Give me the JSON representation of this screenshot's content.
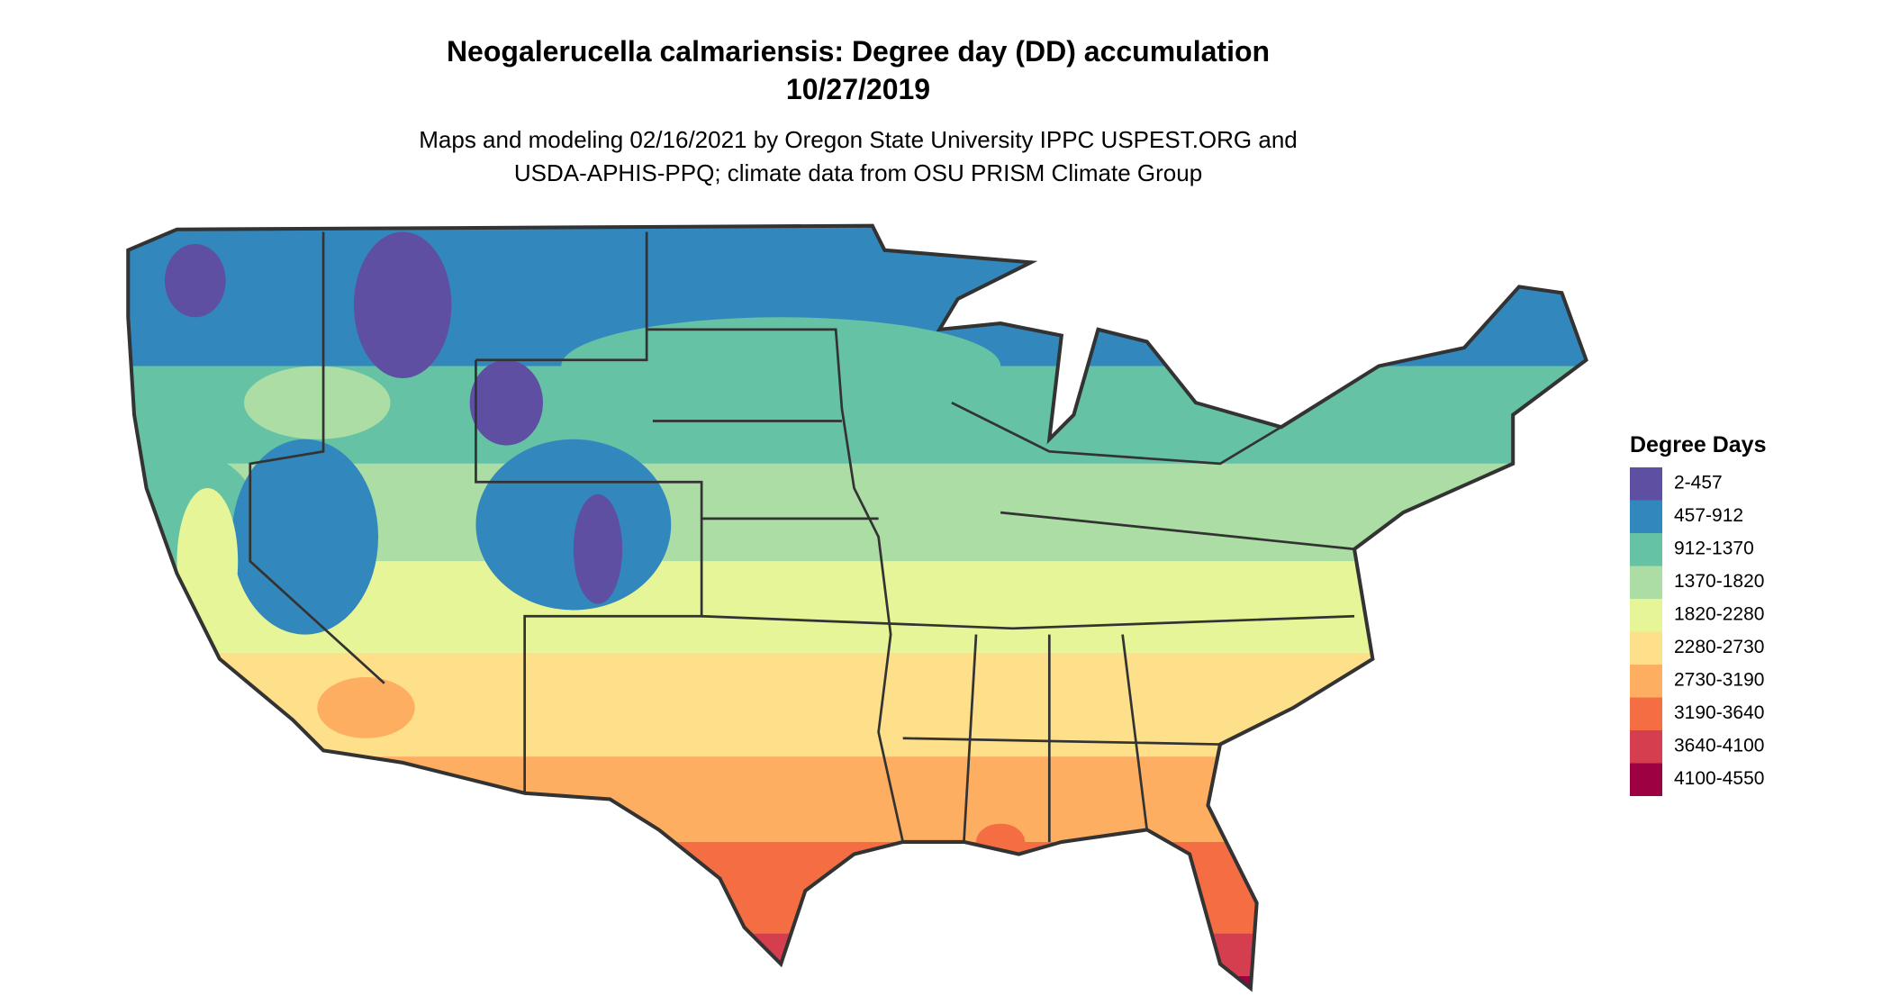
{
  "title": "Neogalerucella calmariensis: Degree day (DD) accumulation",
  "date": "10/27/2019",
  "subtitle": [
    "Maps and modeling 02/16/2021 by Oregon State University IPPC USPEST.ORG and",
    "USDA-APHIS-PPQ; climate data from OSU PRISM Climate Group"
  ],
  "legend": {
    "title": "Degree Days",
    "items": [
      {
        "label": "2-457",
        "color": "#5e4fa2"
      },
      {
        "label": "457-912",
        "color": "#3288bd"
      },
      {
        "label": "912-1370",
        "color": "#66c2a5"
      },
      {
        "label": "1370-1820",
        "color": "#abdda4"
      },
      {
        "label": "1820-2280",
        "color": "#e6f598"
      },
      {
        "label": "2280-2730",
        "color": "#fee08b"
      },
      {
        "label": "2730-3190",
        "color": "#fdae61"
      },
      {
        "label": "3190-3640",
        "color": "#f46d43"
      },
      {
        "label": "3640-4100",
        "color": "#d53e4f"
      },
      {
        "label": "4100-4550",
        "color": "#9e0142"
      }
    ]
  }
}
